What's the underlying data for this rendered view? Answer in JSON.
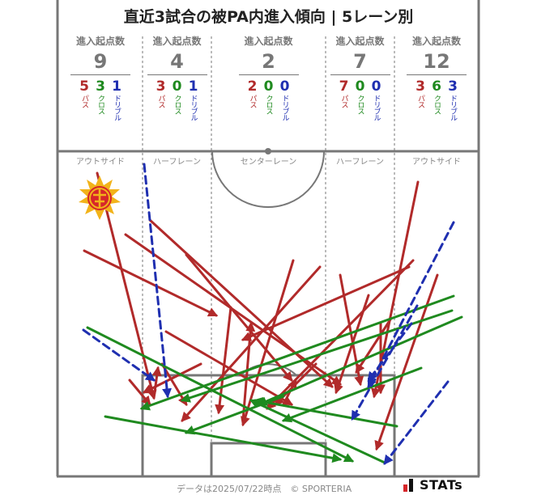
{
  "title": "直近3試合の被PA内進入傾向 | 5レーン別",
  "lanes": [
    {
      "header": "進入起点数",
      "total": "9",
      "name": "アウトサイド",
      "breakdown": [
        {
          "value": "5",
          "label": "パス"
        },
        {
          "value": "3",
          "label": "クロス"
        },
        {
          "value": "1",
          "label": "ドリブル"
        }
      ]
    },
    {
      "header": "進入起点数",
      "total": "4",
      "name": "ハーフレーン",
      "breakdown": [
        {
          "value": "3",
          "label": "パス"
        },
        {
          "value": "0",
          "label": "クロス"
        },
        {
          "value": "1",
          "label": "ドリブル"
        }
      ]
    },
    {
      "header": "進入起点数",
      "total": "2",
      "name": "センターレーン",
      "breakdown": [
        {
          "value": "2",
          "label": "パス"
        },
        {
          "value": "0",
          "label": "クロス"
        },
        {
          "value": "0",
          "label": "ドリブル"
        }
      ]
    },
    {
      "header": "進入起点数",
      "total": "7",
      "name": "ハーフレーン",
      "breakdown": [
        {
          "value": "7",
          "label": "パス"
        },
        {
          "value": "0",
          "label": "クロス"
        },
        {
          "value": "0",
          "label": "ドリブル"
        }
      ]
    },
    {
      "header": "進入起点数",
      "total": "12",
      "name": "アウトサイド",
      "breakdown": [
        {
          "value": "3",
          "label": "パス"
        },
        {
          "value": "6",
          "label": "クロス"
        },
        {
          "value": "3",
          "label": "ドリブル"
        }
      ]
    }
  ],
  "colors": {
    "pass": "#b12a2a",
    "cross": "#1f8a1f",
    "dribble": "#1f2fb0"
  },
  "footer": "データは2025/07/22時点　© SPORTERIA",
  "logo_text": "STATs",
  "chart_data": {
    "type": "pitch-arrow-map",
    "title": "直近3試合の被PA内進入傾向 | 5レーン別",
    "categories": [
      "アウトサイド",
      "ハーフレーン",
      "センターレーン",
      "ハーフレーン",
      "アウトサイド"
    ],
    "series": [
      {
        "name": "パス",
        "values": [
          5,
          3,
          2,
          7,
          3
        ]
      },
      {
        "name": "クロス",
        "values": [
          3,
          0,
          0,
          0,
          6
        ]
      },
      {
        "name": "ドリブル",
        "values": [
          1,
          1,
          0,
          0,
          3
        ]
      }
    ]
  }
}
